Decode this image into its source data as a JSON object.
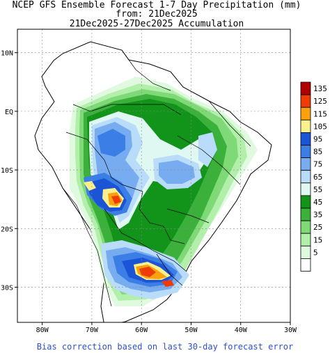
{
  "header": {
    "line1": "NCEP GFS Ensemble Forecast 1-7 Day Precipitation (mm)",
    "line2": "from: 21Dec2025",
    "line3": "21Dec2025-27Dec2025 Accumulation"
  },
  "map": {
    "lon_range": [
      -85,
      -30
    ],
    "lat_range": [
      -36,
      14
    ],
    "lon_ticks": [
      {
        "value": -80,
        "label": "80W"
      },
      {
        "value": -70,
        "label": "70W"
      },
      {
        "value": -60,
        "label": "60W"
      },
      {
        "value": -50,
        "label": "50W"
      },
      {
        "value": -40,
        "label": "40W"
      },
      {
        "value": -30,
        "label": "30W"
      }
    ],
    "lat_ticks": [
      {
        "value": 10,
        "label": "10N"
      },
      {
        "value": 0,
        "label": "EQ"
      },
      {
        "value": -10,
        "label": "10S"
      },
      {
        "value": -20,
        "label": "20S"
      },
      {
        "value": -30,
        "label": "30S"
      }
    ],
    "grid": true
  },
  "legend": {
    "levels": [
      {
        "label": "135",
        "color": "#b00000"
      },
      {
        "label": "125",
        "color": "#ef3b05"
      },
      {
        "label": "115",
        "color": "#fba00f"
      },
      {
        "label": "105",
        "color": "#fbf08c"
      },
      {
        "label": "95",
        "color": "#1c54d6"
      },
      {
        "label": "85",
        "color": "#3b7fe6"
      },
      {
        "label": "75",
        "color": "#78acf1"
      },
      {
        "label": "65",
        "color": "#b8dcf9"
      },
      {
        "label": "55",
        "color": "#dff8f2"
      },
      {
        "label": "45",
        "color": "#12931a"
      },
      {
        "label": "35",
        "color": "#3bb13b"
      },
      {
        "label": "25",
        "color": "#7fd977"
      },
      {
        "label": "15",
        "color": "#b2efab"
      },
      {
        "label": "5",
        "color": "#dffade"
      },
      {
        "label": "",
        "color": "#ffffff"
      }
    ]
  },
  "footer": {
    "note": "Bias correction based on last 30-day forecast error"
  }
}
